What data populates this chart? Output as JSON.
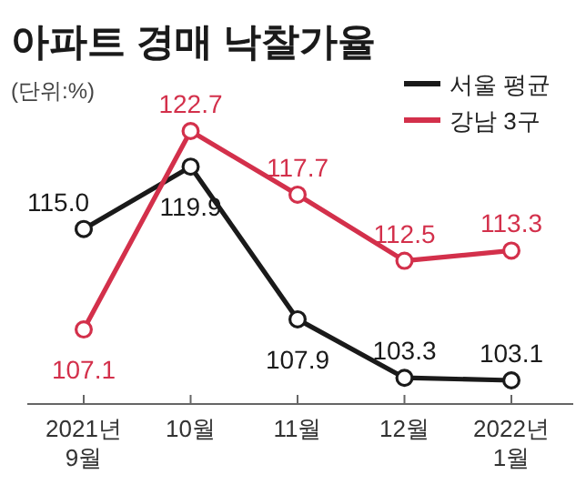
{
  "chart_data": {
    "type": "line",
    "title": "아파트 경매 낙찰가율",
    "subtitle": "(단위:%)",
    "categories": [
      "2021년\n9월",
      "10월",
      "11월",
      "12월",
      "2022년\n1월"
    ],
    "series": [
      {
        "name": "서울 평균",
        "color": "#1a1a1a",
        "values": [
          115.0,
          119.9,
          107.9,
          103.3,
          103.1
        ],
        "value_labels": [
          "115.0",
          "119.9",
          "107.9",
          "103.3",
          "103.1"
        ]
      },
      {
        "name": "강남 3구",
        "color": "#d3304b",
        "values": [
          107.1,
          122.7,
          117.7,
          112.5,
          113.3
        ],
        "value_labels": [
          "107.1",
          "122.7",
          "117.7",
          "112.5",
          "113.3"
        ]
      }
    ],
    "marker": "circle",
    "legend": "top right"
  }
}
